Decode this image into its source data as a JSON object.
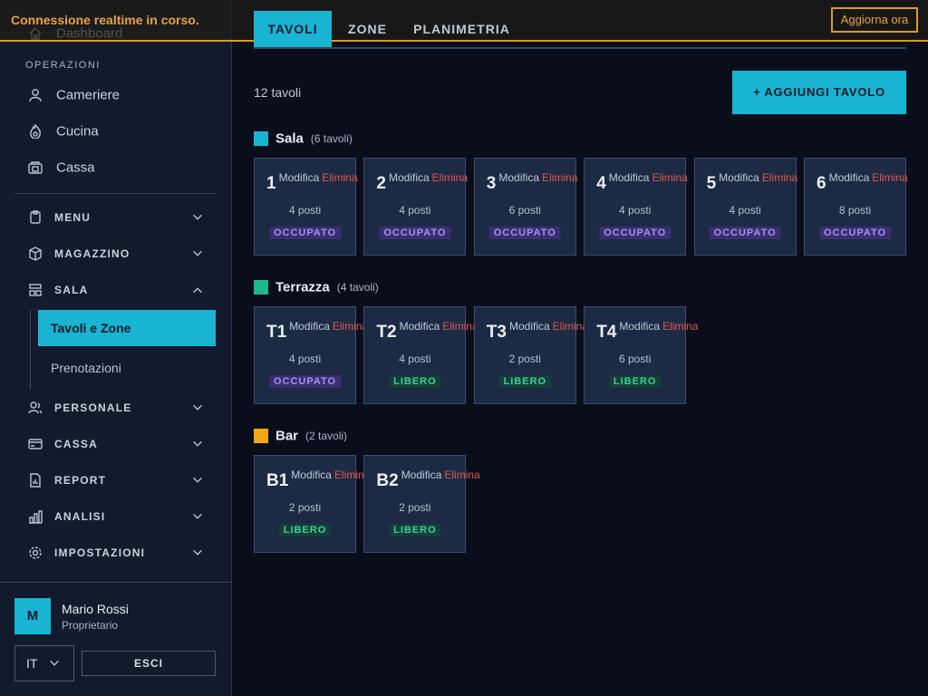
{
  "banner": {
    "message": "Connessione realtime in corso.",
    "button": "Aggiorna ora"
  },
  "sidebar": {
    "top_item": "Dashboard",
    "section_label": "OPERAZIONI",
    "operations": [
      "Cameriere",
      "Cucina",
      "Cassa"
    ],
    "groups": [
      {
        "label": "MENU"
      },
      {
        "label": "MAGAZZINO"
      },
      {
        "label": "SALA",
        "expanded": true,
        "children": [
          "Tavoli e Zone",
          "Prenotazioni"
        ],
        "active_child": 0
      },
      {
        "label": "PERSONALE"
      },
      {
        "label": "CASSA"
      },
      {
        "label": "REPORT"
      },
      {
        "label": "ANALISI"
      },
      {
        "label": "IMPOSTAZIONI"
      }
    ],
    "user": {
      "initial": "M",
      "name": "Mario Rossi",
      "role": "Proprietario"
    },
    "language": "IT",
    "logout": "ESCI"
  },
  "tabs": {
    "items": [
      "TAVOLI",
      "ZONE",
      "PLANIMETRIA"
    ],
    "active": 0
  },
  "count": "12 tavoli",
  "add_button": "+ AGGIUNGI TAVOLO",
  "actions": {
    "edit": "Modifica",
    "delete": "Elimina"
  },
  "statuses": {
    "occupied": "OCCUPATO",
    "free": "LIBERO"
  },
  "zones": [
    {
      "name": "Sala",
      "count": "(6 tavoli)",
      "color": "#18b4d2",
      "tables": [
        {
          "number": "1",
          "seats": "4 posti",
          "status": "occupied"
        },
        {
          "number": "2",
          "seats": "4 posti",
          "status": "occupied"
        },
        {
          "number": "3",
          "seats": "6 posti",
          "status": "occupied"
        },
        {
          "number": "4",
          "seats": "4 posti",
          "status": "occupied"
        },
        {
          "number": "5",
          "seats": "4 posti",
          "status": "occupied"
        },
        {
          "number": "6",
          "seats": "8 posti",
          "status": "occupied"
        }
      ]
    },
    {
      "name": "Terrazza",
      "count": "(4 tavoli)",
      "color": "#1fb88a",
      "tables": [
        {
          "number": "T1",
          "seats": "4 posti",
          "status": "occupied"
        },
        {
          "number": "T2",
          "seats": "4 posti",
          "status": "free"
        },
        {
          "number": "T3",
          "seats": "2 posti",
          "status": "free"
        },
        {
          "number": "T4",
          "seats": "6 posti",
          "status": "free"
        }
      ]
    },
    {
      "name": "Bar",
      "count": "(2 tavoli)",
      "color": "#f2a516",
      "tables": [
        {
          "number": "B1",
          "seats": "2 posti",
          "status": "free"
        },
        {
          "number": "B2",
          "seats": "2 posti",
          "status": "free"
        }
      ]
    }
  ]
}
